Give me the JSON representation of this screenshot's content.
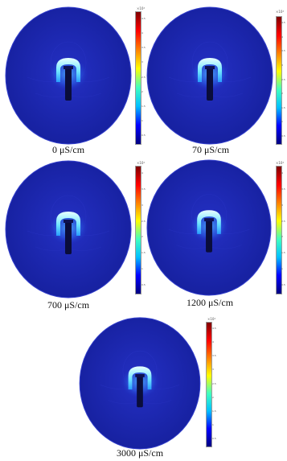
{
  "colors": {
    "field_background": "#1c24b8",
    "field_edge": "#2a35c8",
    "hot": "#dfffff",
    "warm": "#3fd9ff",
    "electrode_slot": "#0a0d3a",
    "colorbar_gradient": [
      "#00007f",
      "#0000ff",
      "#00bfff",
      "#40ffbf",
      "#ffff00",
      "#ff8000",
      "#ff0000",
      "#7f0000"
    ]
  },
  "colorbar": {
    "exponent": "×10⁴"
  },
  "panels": [
    {
      "id": "p1",
      "conductivity_label": "0 μS/cm",
      "ticks": [
        "4.5",
        "4",
        "3.5",
        "3",
        "2.5",
        "2",
        "1.5",
        "1",
        "0.5"
      ]
    },
    {
      "id": "p2",
      "conductivity_label": "70 μS/cm",
      "ticks": [
        "4.5",
        "4",
        "3.5",
        "3",
        "2.5",
        "2",
        "1.5",
        "1",
        "0.5"
      ]
    },
    {
      "id": "p3",
      "conductivity_label": "700 μS/cm",
      "ticks": [
        "4",
        "3.5",
        "3",
        "2.5",
        "2",
        "1.5",
        "1",
        "0.5"
      ]
    },
    {
      "id": "p4",
      "conductivity_label": "1200 μS/cm",
      "ticks": [
        "4",
        "3.5",
        "3",
        "2.5",
        "2",
        "1.5",
        "1",
        "0.5"
      ]
    },
    {
      "id": "p5",
      "conductivity_label": "3000 μS/cm",
      "ticks": [
        "4.5",
        "4",
        "3.5",
        "3",
        "2.5",
        "2",
        "1.5",
        "1",
        "0.5"
      ]
    }
  ]
}
